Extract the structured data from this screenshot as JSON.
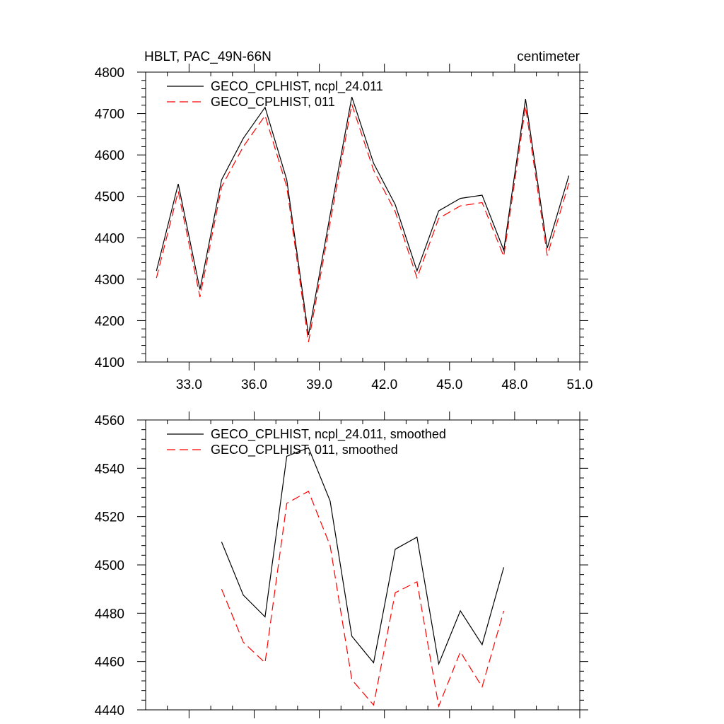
{
  "colors": {
    "series_black": "#000000",
    "series_red": "#ff0000",
    "frame": "#000000",
    "background": "#ffffff"
  },
  "chart_data": [
    {
      "type": "line",
      "title": "HBLT, PAC_49N-66N",
      "units": "centimeter",
      "xlabel": "",
      "ylabel": "",
      "xlim": [
        31.0,
        51.0
      ],
      "ylim": [
        4100,
        4800
      ],
      "grid": false,
      "legend_placement": "top-left",
      "x_ticks": [
        33,
        36,
        39,
        42,
        45,
        48,
        51
      ],
      "x_tick_labels": [
        "33.0",
        "36.0",
        "39.0",
        "42.0",
        "45.0",
        "48.0",
        "51.0"
      ],
      "y_ticks": [
        4100,
        4200,
        4300,
        4400,
        4500,
        4600,
        4700,
        4800
      ],
      "y_tick_labels": [
        "4100",
        "4200",
        "4300",
        "4400",
        "4500",
        "4600",
        "4700",
        "4800"
      ],
      "x": [
        31.5,
        32.5,
        33.5,
        34.5,
        35.5,
        36.5,
        37.5,
        38.5,
        39.5,
        40.5,
        41.5,
        42.5,
        43.5,
        44.5,
        45.5,
        46.5,
        47.5,
        48.5,
        49.5,
        50.5
      ],
      "series": [
        {
          "name": "GECO_CPLHIST, ncpl_24.011",
          "style": "solid",
          "color": "#000000",
          "values": [
            4320,
            4530,
            4275,
            4540,
            4640,
            4715,
            4540,
            4165,
            4455,
            4740,
            4580,
            4480,
            4320,
            4465,
            4495,
            4503,
            4370,
            4735,
            4375,
            4550
          ]
        },
        {
          "name": "GECO_CPLHIST, 011",
          "style": "dashed",
          "color": "#ff0000",
          "values": [
            4303,
            4512,
            4257,
            4523,
            4620,
            4695,
            4523,
            4148,
            4437,
            4722,
            4563,
            4463,
            4303,
            4447,
            4477,
            4485,
            4355,
            4717,
            4357,
            4532
          ]
        }
      ]
    },
    {
      "type": "line",
      "title": "",
      "xlabel": "",
      "ylabel": "",
      "xlim": [
        31.0,
        51.0
      ],
      "ylim": [
        4440,
        4560
      ],
      "grid": false,
      "legend_placement": "top-left",
      "x_ticks": [
        33,
        36,
        39,
        42,
        45,
        48,
        51
      ],
      "y_ticks": [
        4440,
        4460,
        4480,
        4500,
        4520,
        4540,
        4560
      ],
      "y_tick_labels": [
        "4440",
        "4460",
        "4480",
        "4500",
        "4520",
        "4540",
        "4560"
      ],
      "x": [
        34.5,
        35.5,
        36.5,
        37.5,
        38.5,
        39.5,
        40.5,
        41.5,
        42.5,
        43.5,
        44.5,
        45.5,
        46.5,
        47.5
      ],
      "series": [
        {
          "name": "GECO_CPLHIST, ncpl_24.011, smoothed",
          "style": "solid",
          "color": "#000000",
          "values": [
            4509.5,
            4487.5,
            4478.5,
            4545,
            4548.5,
            4526.5,
            4470.5,
            4459.5,
            4506.5,
            4511.5,
            4459,
            4481,
            4467,
            4499
          ]
        },
        {
          "name": "GECO_CPLHIST, 011, smoothed",
          "style": "dashed",
          "color": "#ff0000",
          "values": [
            4490,
            4468,
            4459.5,
            4525.5,
            4530.5,
            4508,
            4452.5,
            4442,
            4488.5,
            4493,
            4441.5,
            4464,
            4449.5,
            4481
          ]
        }
      ]
    }
  ]
}
